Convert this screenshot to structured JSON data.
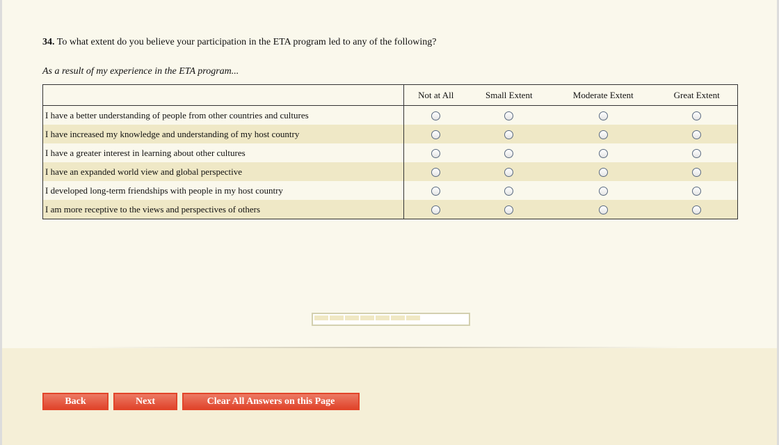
{
  "question": {
    "number": "34.",
    "text": " To what extent do you believe your participation in the ETA program led to any of the following?"
  },
  "subtitle": "As a result of my experience in the ETA program...",
  "columns": [
    "Not at All",
    "Small Extent",
    "Moderate Extent",
    "Great Extent"
  ],
  "rows": [
    "I have a better understanding of people from other countries and cultures",
    "I have increased my knowledge and understanding of my host country",
    "I have a greater interest in learning about other cultures",
    "I have an expanded world view and global perspective",
    "I developed long-term friendships with people in my host country",
    "I am more receptive to the views and perspectives of others"
  ],
  "progress": {
    "completed_segments": 7,
    "total_segments": 10,
    "percent": 70
  },
  "buttons": {
    "back": "Back",
    "next": "Next",
    "clear": "Clear All Answers on this Page"
  },
  "colors": {
    "button": "#e0442b",
    "row_alt": "#efe8c6",
    "background": "#faf8ec"
  }
}
